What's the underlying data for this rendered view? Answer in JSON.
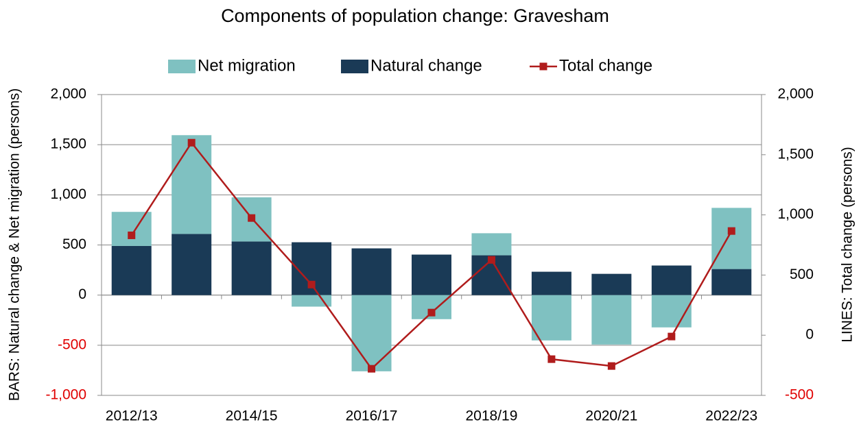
{
  "chart_data": {
    "type": "bar_line",
    "title": "Components of population change: Gravesham",
    "ylabel": "BARS: Natural change & Net migration (persons)",
    "y2label": "LINES: Total change (persons)",
    "categories": [
      "2012/13",
      null,
      "2014/15",
      null,
      "2016/17",
      null,
      "2018/19",
      null,
      "2020/21",
      null,
      "2022/23"
    ],
    "series": [
      {
        "name": "Net migration",
        "type": "bar",
        "color": "#7fc1c1",
        "values": [
          340,
          985,
          440,
          -115,
          -760,
          -240,
          220,
          -452,
          -493,
          -322,
          610
        ]
      },
      {
        "name": "Natural change",
        "type": "bar",
        "color": "#1a3a56",
        "values": [
          490,
          610,
          535,
          527,
          466,
          404,
          397,
          233,
          212,
          295,
          260
        ]
      },
      {
        "name": "Total change",
        "type": "line",
        "axis": "y2",
        "color": "#b01c1c",
        "values": [
          830,
          1600,
          974,
          421,
          -279,
          188,
          626,
          -199,
          -256,
          -11,
          866
        ]
      }
    ],
    "ylim": [
      -1000,
      2000
    ],
    "yticks": [
      {
        "value": -1000,
        "label": "-1,000"
      },
      -500,
      0,
      500,
      {
        "value": 1000,
        "label": "1,000"
      },
      {
        "value": 1500,
        "label": "1,500"
      },
      {
        "value": 2000,
        "label": "2,000"
      }
    ],
    "y2lim": [
      -500,
      2000
    ],
    "y2ticks": [
      -500,
      0,
      500,
      {
        "value": 1000,
        "label": "1,000"
      },
      {
        "value": 1500,
        "label": "1,500"
      },
      {
        "value": 2000,
        "label": "2,000"
      }
    ],
    "grid": true,
    "legend": "top",
    "negative_tick_color": "#e00000"
  }
}
